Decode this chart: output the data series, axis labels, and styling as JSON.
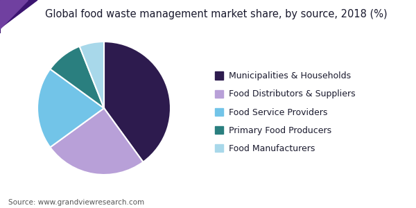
{
  "title": "Global food waste management market share, by source, 2018 (%)",
  "labels": [
    "Municipalities & Households",
    "Food Distributors & Suppliers",
    "Food Service Providers",
    "Primary Food Producers",
    "Food Manufacturers"
  ],
  "values": [
    40.0,
    25.0,
    20.0,
    9.0,
    6.0
  ],
  "colors": [
    "#2d1b4e",
    "#b8a0d8",
    "#72c4e8",
    "#2a7f7f",
    "#a8d8ea"
  ],
  "source": "Source: www.grandviewresearch.com",
  "background_color": "#ffffff",
  "title_color": "#1a1a2e",
  "startangle": 90,
  "legend_fontsize": 9,
  "title_fontsize": 10.5,
  "tri_color1": "#3b1470",
  "tri_color2": "#7040a0",
  "header_line_color": "#4a2090"
}
